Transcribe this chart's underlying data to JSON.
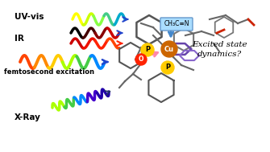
{
  "bg_color": "#ffffff",
  "uvvis_label": "UV-vis",
  "ir_label": "IR",
  "femto_label": "femtosecond excitation",
  "xray_label": "X-Ray",
  "excited_line1": "Excited state",
  "excited_line2": "dynamics?",
  "ch3cn_label": "CH₃C≡N",
  "cu_color": "#cc6600",
  "p_color": "#ffcc00",
  "o_color": "#ff2200",
  "arrow_blue": "#2244cc",
  "arrow_pink": "#ff88aa",
  "arrow_dark": "#223366",
  "box_fc": "#aaddff",
  "box_ec": "#6699cc",
  "mol_color": "#555555",
  "mol_color2": "#777777",
  "purple_ring": "#6644aa",
  "purple_ring2": "#8866cc",
  "red_bond": "#cc2200"
}
